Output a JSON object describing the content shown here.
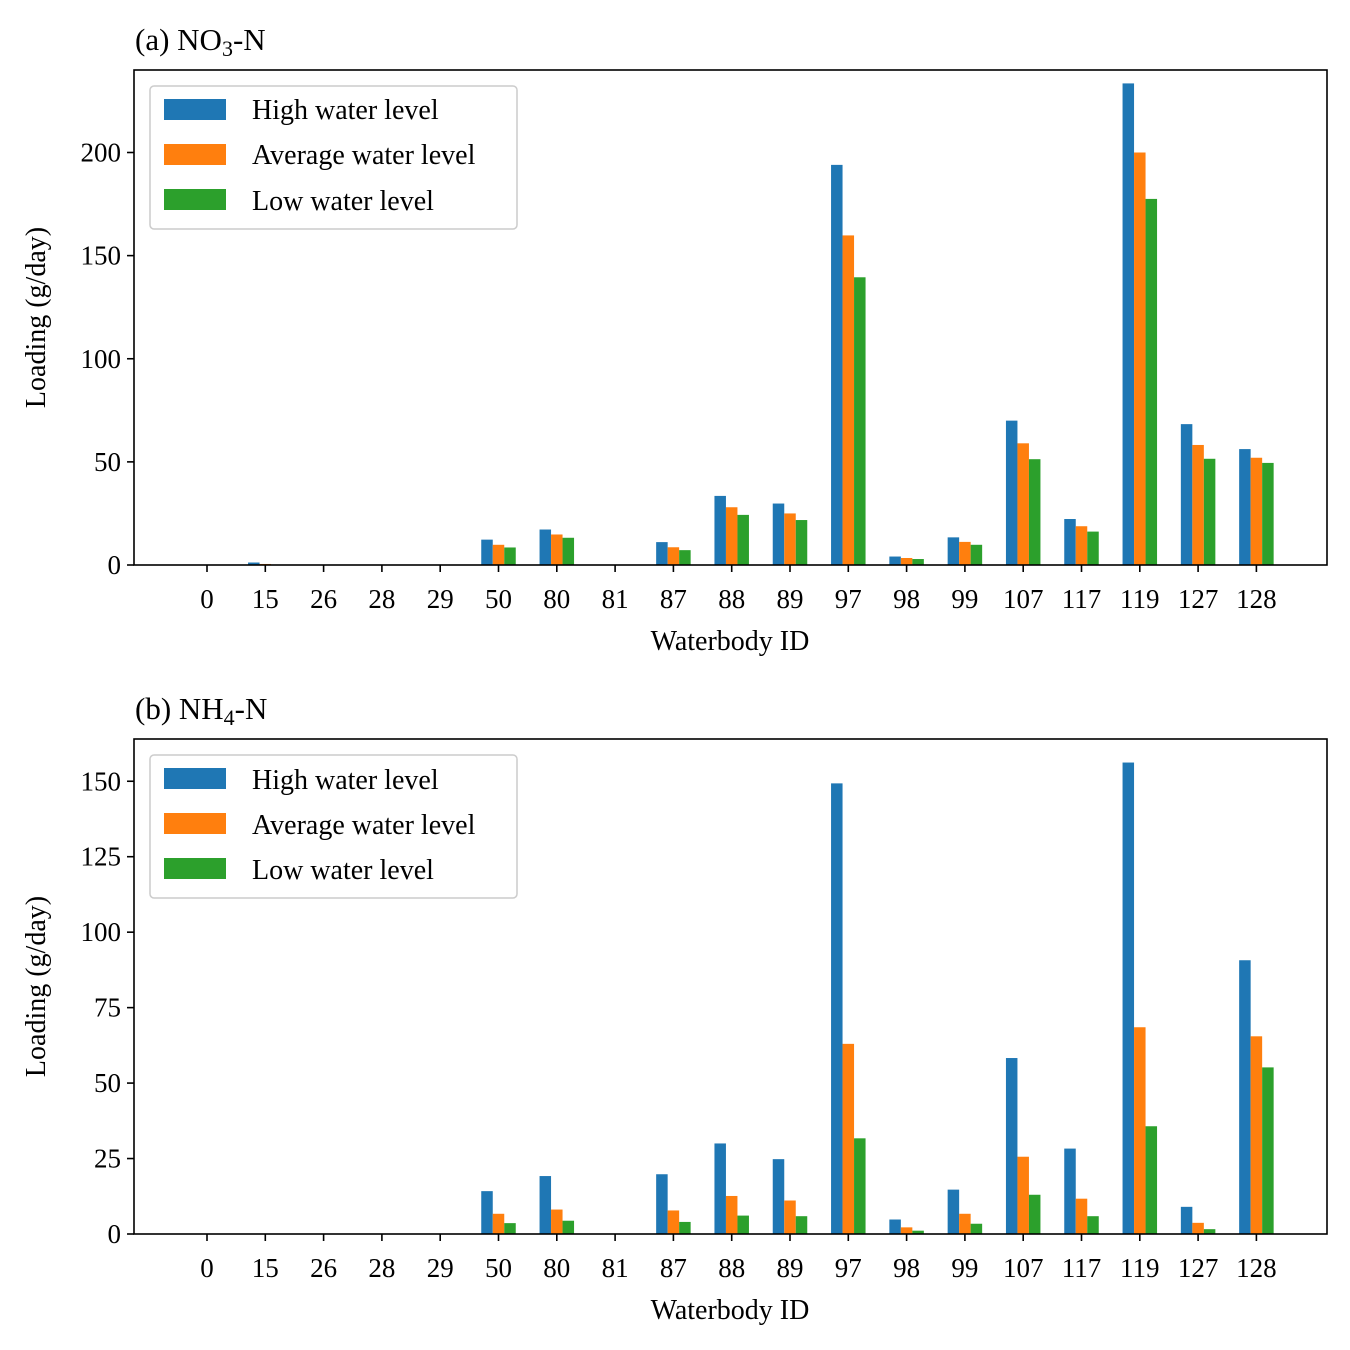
{
  "chart_data": [
    {
      "type": "bar",
      "title": {
        "prefix": "(a) NO",
        "subscript": "3",
        "suffix": "-N"
      },
      "xlabel": "Waterbody ID",
      "ylabel": "Loading (g/day)",
      "categories": [
        "0",
        "15",
        "26",
        "28",
        "29",
        "50",
        "80",
        "81",
        "87",
        "88",
        "89",
        "97",
        "98",
        "99",
        "107",
        "117",
        "119",
        "127",
        "128"
      ],
      "ylim": [
        0,
        240
      ],
      "yticks": [
        0,
        50,
        100,
        150,
        200
      ],
      "legend_position": "upper-left",
      "grid": false,
      "series": [
        {
          "name": "High water level",
          "color": "#1f77b4",
          "values": [
            0,
            1.2,
            0,
            0,
            0,
            12.3,
            17.2,
            0,
            11.1,
            33.5,
            29.8,
            194,
            4.1,
            13.4,
            70.0,
            22.3,
            233.5,
            68.3,
            56.2
          ]
        },
        {
          "name": "Average water level",
          "color": "#ff7f0e",
          "values": [
            0,
            0.5,
            0,
            0,
            0,
            9.8,
            14.8,
            0,
            8.6,
            28.0,
            25.0,
            159.8,
            3.4,
            11.2,
            59.0,
            18.8,
            200.0,
            58.2,
            52.0
          ]
        },
        {
          "name": "Low water level",
          "color": "#2ca02c",
          "values": [
            0,
            0,
            0,
            0,
            0,
            8.5,
            13.2,
            0,
            7.2,
            24.3,
            21.8,
            139.5,
            2.9,
            9.8,
            51.3,
            16.2,
            177.5,
            51.5,
            49.5
          ]
        }
      ]
    },
    {
      "type": "bar",
      "title": {
        "prefix": "(b) NH",
        "subscript": "4",
        "suffix": "-N"
      },
      "xlabel": "Waterbody ID",
      "ylabel": "Loading (g/day)",
      "categories": [
        "0",
        "15",
        "26",
        "28",
        "29",
        "50",
        "80",
        "81",
        "87",
        "88",
        "89",
        "97",
        "98",
        "99",
        "107",
        "117",
        "119",
        "127",
        "128"
      ],
      "ylim": [
        0,
        164
      ],
      "yticks": [
        0,
        25,
        50,
        75,
        100,
        125,
        150
      ],
      "legend_position": "upper-left",
      "grid": false,
      "series": [
        {
          "name": "High water level",
          "color": "#1f77b4",
          "values": [
            0,
            0,
            0,
            0,
            0,
            14.2,
            19.2,
            0,
            19.8,
            30.0,
            24.8,
            149.3,
            4.8,
            14.7,
            58.3,
            28.3,
            156.2,
            9.0,
            90.7
          ]
        },
        {
          "name": "Average water level",
          "color": "#ff7f0e",
          "values": [
            0,
            0,
            0,
            0,
            0,
            6.7,
            8.1,
            0,
            7.8,
            12.6,
            11.1,
            63.0,
            2.2,
            6.7,
            25.6,
            11.7,
            68.5,
            3.7,
            65.5
          ]
        },
        {
          "name": "Low water level",
          "color": "#2ca02c",
          "values": [
            0,
            0,
            0,
            0,
            0,
            3.6,
            4.4,
            0,
            4.0,
            6.1,
            5.9,
            31.7,
            1.1,
            3.4,
            13.0,
            5.9,
            35.7,
            1.6,
            55.2
          ]
        }
      ]
    }
  ]
}
